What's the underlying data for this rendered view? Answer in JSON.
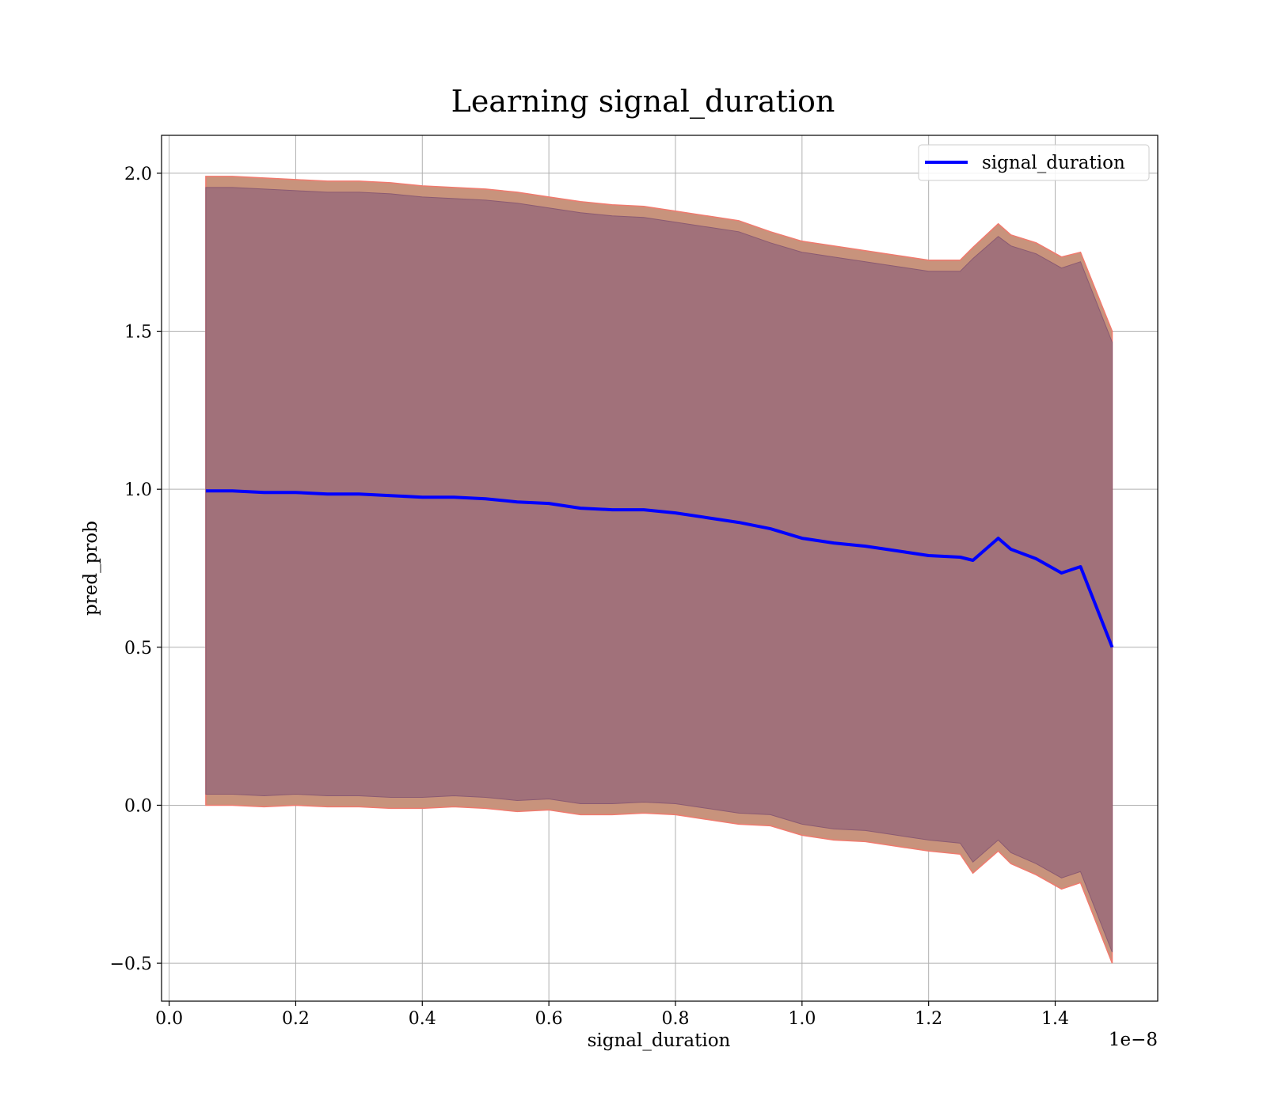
{
  "chart_data": {
    "type": "line",
    "title": "Learning signal_duration",
    "xlabel": "signal_duration",
    "ylabel": "pred_prob",
    "x_offset_text": "1e−8",
    "xlim": [
      -0.012,
      1.562
    ],
    "ylim": [
      -0.62,
      2.12
    ],
    "xticks": [
      0.0,
      0.2,
      0.4,
      0.6,
      0.8,
      1.0,
      1.2,
      1.4
    ],
    "xtick_labels": [
      "0.0",
      "0.2",
      "0.4",
      "0.6",
      "0.8",
      "1.0",
      "1.2",
      "1.4"
    ],
    "yticks": [
      -0.5,
      0.0,
      0.5,
      1.0,
      1.5,
      2.0
    ],
    "ytick_labels": [
      "−0.5",
      "0.0",
      "0.5",
      "1.0",
      "1.5",
      "2.0"
    ],
    "grid": true,
    "legend": {
      "position": "top-right",
      "entries": [
        {
          "label": "signal_duration",
          "color": "#0000ff"
        }
      ]
    },
    "colors": {
      "line": "#0000ff",
      "inner_band": "#a1717a",
      "outer_band": "#c8937c",
      "band_edge": "#f07a6e"
    },
    "series": [
      {
        "name": "signal_duration",
        "x": [
          0.058,
          0.1,
          0.15,
          0.2,
          0.25,
          0.3,
          0.35,
          0.4,
          0.45,
          0.5,
          0.55,
          0.6,
          0.65,
          0.7,
          0.75,
          0.8,
          0.85,
          0.9,
          0.95,
          1.0,
          1.05,
          1.1,
          1.15,
          1.2,
          1.25,
          1.27,
          1.31,
          1.33,
          1.37,
          1.41,
          1.44,
          1.49
        ],
        "y": [
          0.995,
          0.995,
          0.99,
          0.99,
          0.985,
          0.985,
          0.98,
          0.975,
          0.975,
          0.97,
          0.96,
          0.955,
          0.94,
          0.935,
          0.935,
          0.925,
          0.91,
          0.895,
          0.875,
          0.845,
          0.83,
          0.82,
          0.805,
          0.79,
          0.785,
          0.775,
          0.845,
          0.81,
          0.78,
          0.735,
          0.755,
          0.5
        ],
        "band_inner_upper": [
          1.955,
          1.955,
          1.95,
          1.945,
          1.94,
          1.94,
          1.935,
          1.925,
          1.92,
          1.915,
          1.905,
          1.89,
          1.875,
          1.865,
          1.86,
          1.845,
          1.83,
          1.815,
          1.78,
          1.75,
          1.735,
          1.72,
          1.705,
          1.69,
          1.69,
          1.73,
          1.8,
          1.77,
          1.745,
          1.7,
          1.72,
          1.465
        ],
        "band_inner_lower": [
          0.035,
          0.035,
          0.03,
          0.035,
          0.03,
          0.03,
          0.025,
          0.025,
          0.03,
          0.025,
          0.015,
          0.02,
          0.005,
          0.005,
          0.01,
          0.005,
          -0.01,
          -0.025,
          -0.03,
          -0.06,
          -0.075,
          -0.08,
          -0.095,
          -0.11,
          -0.12,
          -0.18,
          -0.11,
          -0.15,
          -0.185,
          -0.23,
          -0.21,
          -0.465
        ],
        "band_outer_upper": [
          1.99,
          1.99,
          1.985,
          1.98,
          1.975,
          1.975,
          1.97,
          1.96,
          1.955,
          1.95,
          1.94,
          1.925,
          1.91,
          1.9,
          1.895,
          1.88,
          1.865,
          1.85,
          1.815,
          1.785,
          1.77,
          1.755,
          1.74,
          1.725,
          1.725,
          1.765,
          1.84,
          1.805,
          1.78,
          1.735,
          1.75,
          1.5
        ],
        "band_outer_lower": [
          0.0,
          0.0,
          -0.005,
          0.0,
          -0.005,
          -0.005,
          -0.01,
          -0.01,
          -0.005,
          -0.01,
          -0.02,
          -0.015,
          -0.03,
          -0.03,
          -0.025,
          -0.03,
          -0.045,
          -0.06,
          -0.065,
          -0.095,
          -0.11,
          -0.115,
          -0.13,
          -0.145,
          -0.155,
          -0.215,
          -0.145,
          -0.185,
          -0.22,
          -0.265,
          -0.245,
          -0.5
        ]
      }
    ]
  }
}
